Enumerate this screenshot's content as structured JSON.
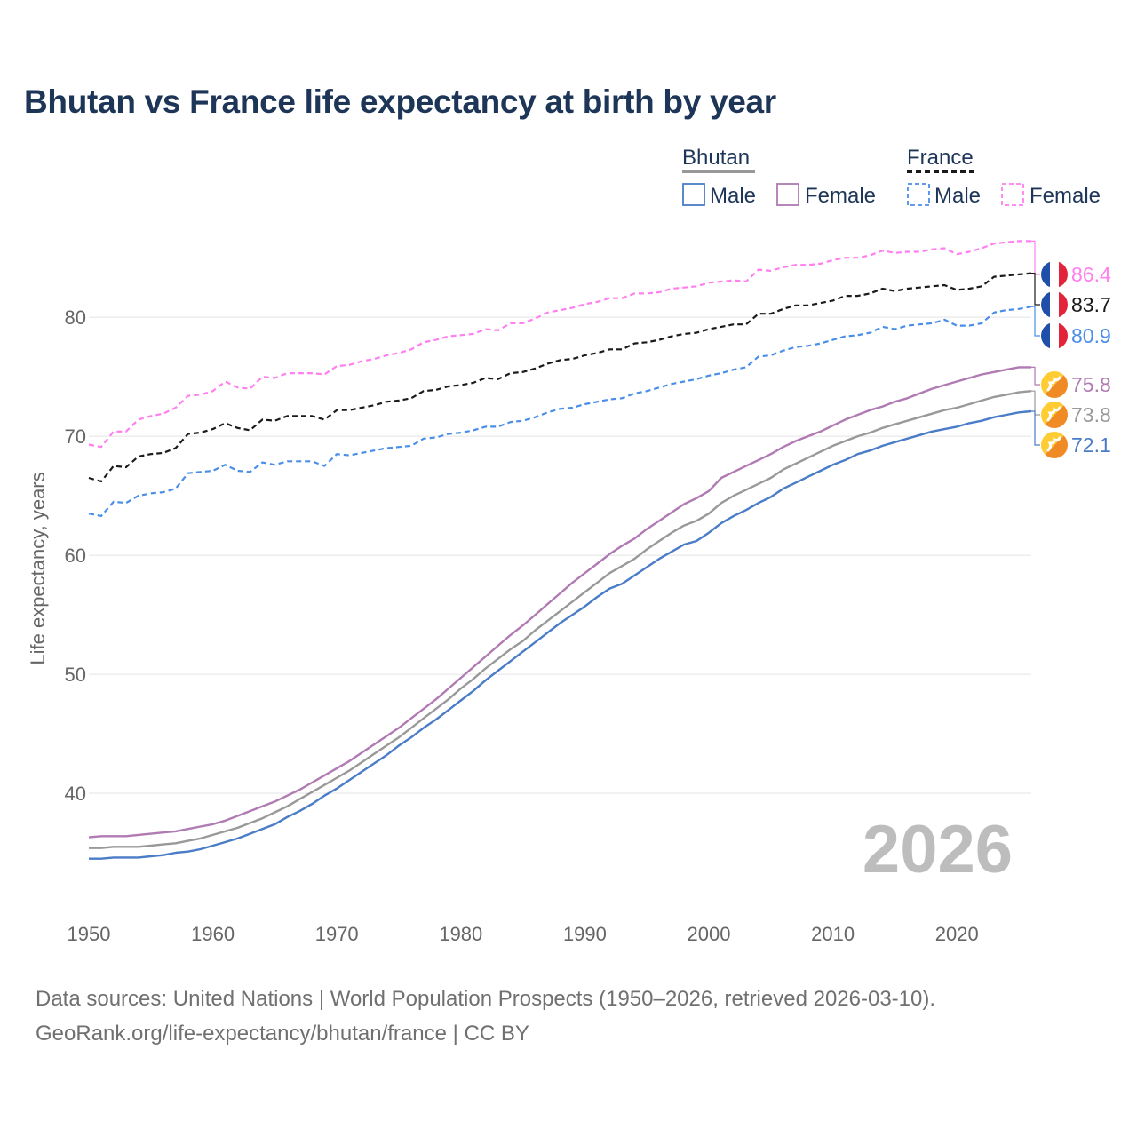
{
  "chart_data": {
    "type": "line",
    "title": "Bhutan vs France life expectancy at birth by year",
    "ylabel": "Life expectancy, years",
    "xlabel": "",
    "xlim": [
      1950,
      2026
    ],
    "ylim": [
      30,
      88
    ],
    "x_ticks": [
      "1950",
      "1960",
      "1970",
      "1980",
      "1990",
      "2000",
      "2010",
      "2020"
    ],
    "y_ticks": [
      "40",
      "50",
      "60",
      "70",
      "80"
    ],
    "current_year": "2026",
    "legend": {
      "groups": [
        {
          "name": "Bhutan",
          "items": [
            "Male",
            "Female"
          ],
          "style": "solid"
        },
        {
          "name": "France",
          "items": [
            "Male",
            "Female"
          ],
          "style": "dashed"
        }
      ]
    },
    "x": [
      1950,
      1951,
      1952,
      1953,
      1954,
      1955,
      1956,
      1957,
      1958,
      1959,
      1960,
      1961,
      1962,
      1963,
      1964,
      1965,
      1966,
      1967,
      1968,
      1969,
      1970,
      1971,
      1972,
      1973,
      1974,
      1975,
      1976,
      1977,
      1978,
      1979,
      1980,
      1981,
      1982,
      1983,
      1984,
      1985,
      1986,
      1987,
      1988,
      1989,
      1990,
      1991,
      1992,
      1993,
      1994,
      1995,
      1996,
      1997,
      1998,
      1999,
      2000,
      2001,
      2002,
      2003,
      2004,
      2005,
      2006,
      2007,
      2008,
      2009,
      2010,
      2011,
      2012,
      2013,
      2014,
      2015,
      2016,
      2017,
      2018,
      2019,
      2020,
      2021,
      2022,
      2023,
      2024,
      2025,
      2026
    ],
    "series": [
      {
        "name": "France Female",
        "country": "France",
        "sex": "Female",
        "color": "#ff7ff0",
        "dashed": true,
        "end_label": "86.4",
        "values": [
          69.3,
          69.1,
          70.4,
          70.4,
          71.4,
          71.7,
          71.9,
          72.4,
          73.4,
          73.5,
          73.8,
          74.6,
          74.1,
          74.0,
          75.0,
          74.9,
          75.3,
          75.3,
          75.3,
          75.2,
          75.9,
          76.0,
          76.3,
          76.5,
          76.8,
          77.0,
          77.3,
          77.9,
          78.1,
          78.4,
          78.5,
          78.6,
          79.0,
          78.9,
          79.5,
          79.5,
          79.9,
          80.4,
          80.6,
          80.8,
          81.1,
          81.3,
          81.6,
          81.6,
          82.0,
          82.0,
          82.1,
          82.4,
          82.5,
          82.6,
          82.9,
          83.0,
          83.1,
          83.0,
          84.0,
          83.9,
          84.2,
          84.4,
          84.4,
          84.5,
          84.8,
          85.0,
          85.0,
          85.2,
          85.6,
          85.4,
          85.5,
          85.5,
          85.7,
          85.8,
          85.3,
          85.5,
          85.8,
          86.2,
          86.3,
          86.4,
          86.4
        ]
      },
      {
        "name": "France Total",
        "country": "France",
        "sex": "Total",
        "color": "#1a1a1a",
        "dashed": true,
        "end_label": "83.7",
        "values": [
          66.5,
          66.2,
          67.5,
          67.4,
          68.3,
          68.5,
          68.6,
          69.0,
          70.2,
          70.3,
          70.6,
          71.1,
          70.7,
          70.5,
          71.4,
          71.3,
          71.7,
          71.7,
          71.7,
          71.4,
          72.2,
          72.2,
          72.4,
          72.6,
          72.9,
          73.0,
          73.2,
          73.8,
          73.9,
          74.2,
          74.3,
          74.5,
          74.9,
          74.8,
          75.3,
          75.4,
          75.7,
          76.1,
          76.4,
          76.5,
          76.8,
          77.0,
          77.3,
          77.3,
          77.8,
          77.9,
          78.1,
          78.4,
          78.6,
          78.7,
          79.0,
          79.2,
          79.4,
          79.4,
          80.3,
          80.3,
          80.7,
          81.0,
          81.0,
          81.2,
          81.4,
          81.8,
          81.8,
          82.0,
          82.4,
          82.2,
          82.4,
          82.5,
          82.6,
          82.7,
          82.3,
          82.4,
          82.6,
          83.4,
          83.5,
          83.6,
          83.7
        ]
      },
      {
        "name": "France Male",
        "country": "France",
        "sex": "Male",
        "color": "#4a8ee8",
        "dashed": true,
        "end_label": "80.9",
        "values": [
          63.5,
          63.3,
          64.5,
          64.4,
          65.0,
          65.2,
          65.3,
          65.6,
          66.9,
          67.0,
          67.1,
          67.6,
          67.1,
          67.0,
          67.8,
          67.6,
          67.9,
          67.9,
          67.9,
          67.5,
          68.5,
          68.4,
          68.6,
          68.8,
          69.0,
          69.1,
          69.2,
          69.8,
          69.9,
          70.2,
          70.3,
          70.5,
          70.8,
          70.8,
          71.2,
          71.3,
          71.6,
          72.0,
          72.3,
          72.4,
          72.7,
          72.9,
          73.1,
          73.2,
          73.6,
          73.8,
          74.1,
          74.4,
          74.6,
          74.8,
          75.1,
          75.3,
          75.6,
          75.8,
          76.7,
          76.8,
          77.2,
          77.5,
          77.6,
          77.8,
          78.1,
          78.4,
          78.5,
          78.7,
          79.2,
          79.0,
          79.3,
          79.4,
          79.5,
          79.8,
          79.3,
          79.3,
          79.5,
          80.4,
          80.6,
          80.7,
          80.9
        ]
      },
      {
        "name": "Bhutan Female",
        "country": "Bhutan",
        "sex": "Female",
        "color": "#b07ab3",
        "dashed": false,
        "end_label": "75.8",
        "values": [
          36.3,
          36.4,
          36.4,
          36.4,
          36.5,
          36.6,
          36.7,
          36.8,
          37.0,
          37.2,
          37.4,
          37.7,
          38.1,
          38.5,
          38.9,
          39.3,
          39.8,
          40.3,
          40.9,
          41.5,
          42.1,
          42.7,
          43.4,
          44.1,
          44.8,
          45.5,
          46.3,
          47.1,
          47.9,
          48.8,
          49.7,
          50.6,
          51.5,
          52.4,
          53.3,
          54.1,
          55.0,
          55.9,
          56.8,
          57.7,
          58.5,
          59.3,
          60.1,
          60.8,
          61.4,
          62.2,
          62.9,
          63.6,
          64.3,
          64.8,
          65.4,
          66.5,
          67.0,
          67.5,
          68.0,
          68.5,
          69.1,
          69.6,
          70.0,
          70.4,
          70.9,
          71.4,
          71.8,
          72.2,
          72.5,
          72.9,
          73.2,
          73.6,
          74.0,
          74.3,
          74.6,
          74.9,
          75.2,
          75.4,
          75.6,
          75.8,
          75.8
        ]
      },
      {
        "name": "Bhutan Total",
        "country": "Bhutan",
        "sex": "Total",
        "color": "#999999",
        "dashed": false,
        "end_label": "73.8",
        "values": [
          35.4,
          35.4,
          35.5,
          35.5,
          35.5,
          35.6,
          35.7,
          35.8,
          36.0,
          36.2,
          36.5,
          36.8,
          37.1,
          37.5,
          37.9,
          38.4,
          38.9,
          39.5,
          40.1,
          40.7,
          41.3,
          41.9,
          42.6,
          43.3,
          44.0,
          44.7,
          45.5,
          46.3,
          47.1,
          47.9,
          48.8,
          49.6,
          50.5,
          51.3,
          52.1,
          52.8,
          53.7,
          54.5,
          55.3,
          56.1,
          56.9,
          57.7,
          58.5,
          59.1,
          59.7,
          60.5,
          61.2,
          61.9,
          62.5,
          62.9,
          63.5,
          64.4,
          65.0,
          65.5,
          66.0,
          66.5,
          67.2,
          67.7,
          68.2,
          68.7,
          69.2,
          69.6,
          70.0,
          70.3,
          70.7,
          71.0,
          71.3,
          71.6,
          71.9,
          72.2,
          72.4,
          72.7,
          73.0,
          73.3,
          73.5,
          73.7,
          73.8
        ]
      },
      {
        "name": "Bhutan Male",
        "country": "Bhutan",
        "sex": "Male",
        "color": "#4a7cc7",
        "dashed": false,
        "end_label": "72.1",
        "values": [
          34.5,
          34.5,
          34.6,
          34.6,
          34.6,
          34.7,
          34.8,
          35.0,
          35.1,
          35.3,
          35.6,
          35.9,
          36.2,
          36.6,
          37.0,
          37.4,
          38.0,
          38.5,
          39.1,
          39.8,
          40.4,
          41.1,
          41.8,
          42.5,
          43.2,
          44.0,
          44.7,
          45.5,
          46.2,
          47.0,
          47.8,
          48.6,
          49.5,
          50.3,
          51.1,
          51.9,
          52.7,
          53.5,
          54.3,
          55.0,
          55.7,
          56.5,
          57.2,
          57.6,
          58.3,
          59.0,
          59.7,
          60.3,
          60.9,
          61.2,
          61.9,
          62.7,
          63.3,
          63.8,
          64.4,
          64.9,
          65.6,
          66.1,
          66.6,
          67.1,
          67.6,
          68.0,
          68.5,
          68.8,
          69.2,
          69.5,
          69.8,
          70.1,
          70.4,
          70.6,
          70.8,
          71.1,
          71.3,
          71.6,
          71.8,
          72.0,
          72.1
        ]
      }
    ]
  },
  "source": {
    "line1": "Data sources: United Nations | World Population Prospects (1950–2026, retrieved 2026-03-10).",
    "line2": "GeoRank.org/life-expectancy/bhutan/france | CC BY"
  }
}
